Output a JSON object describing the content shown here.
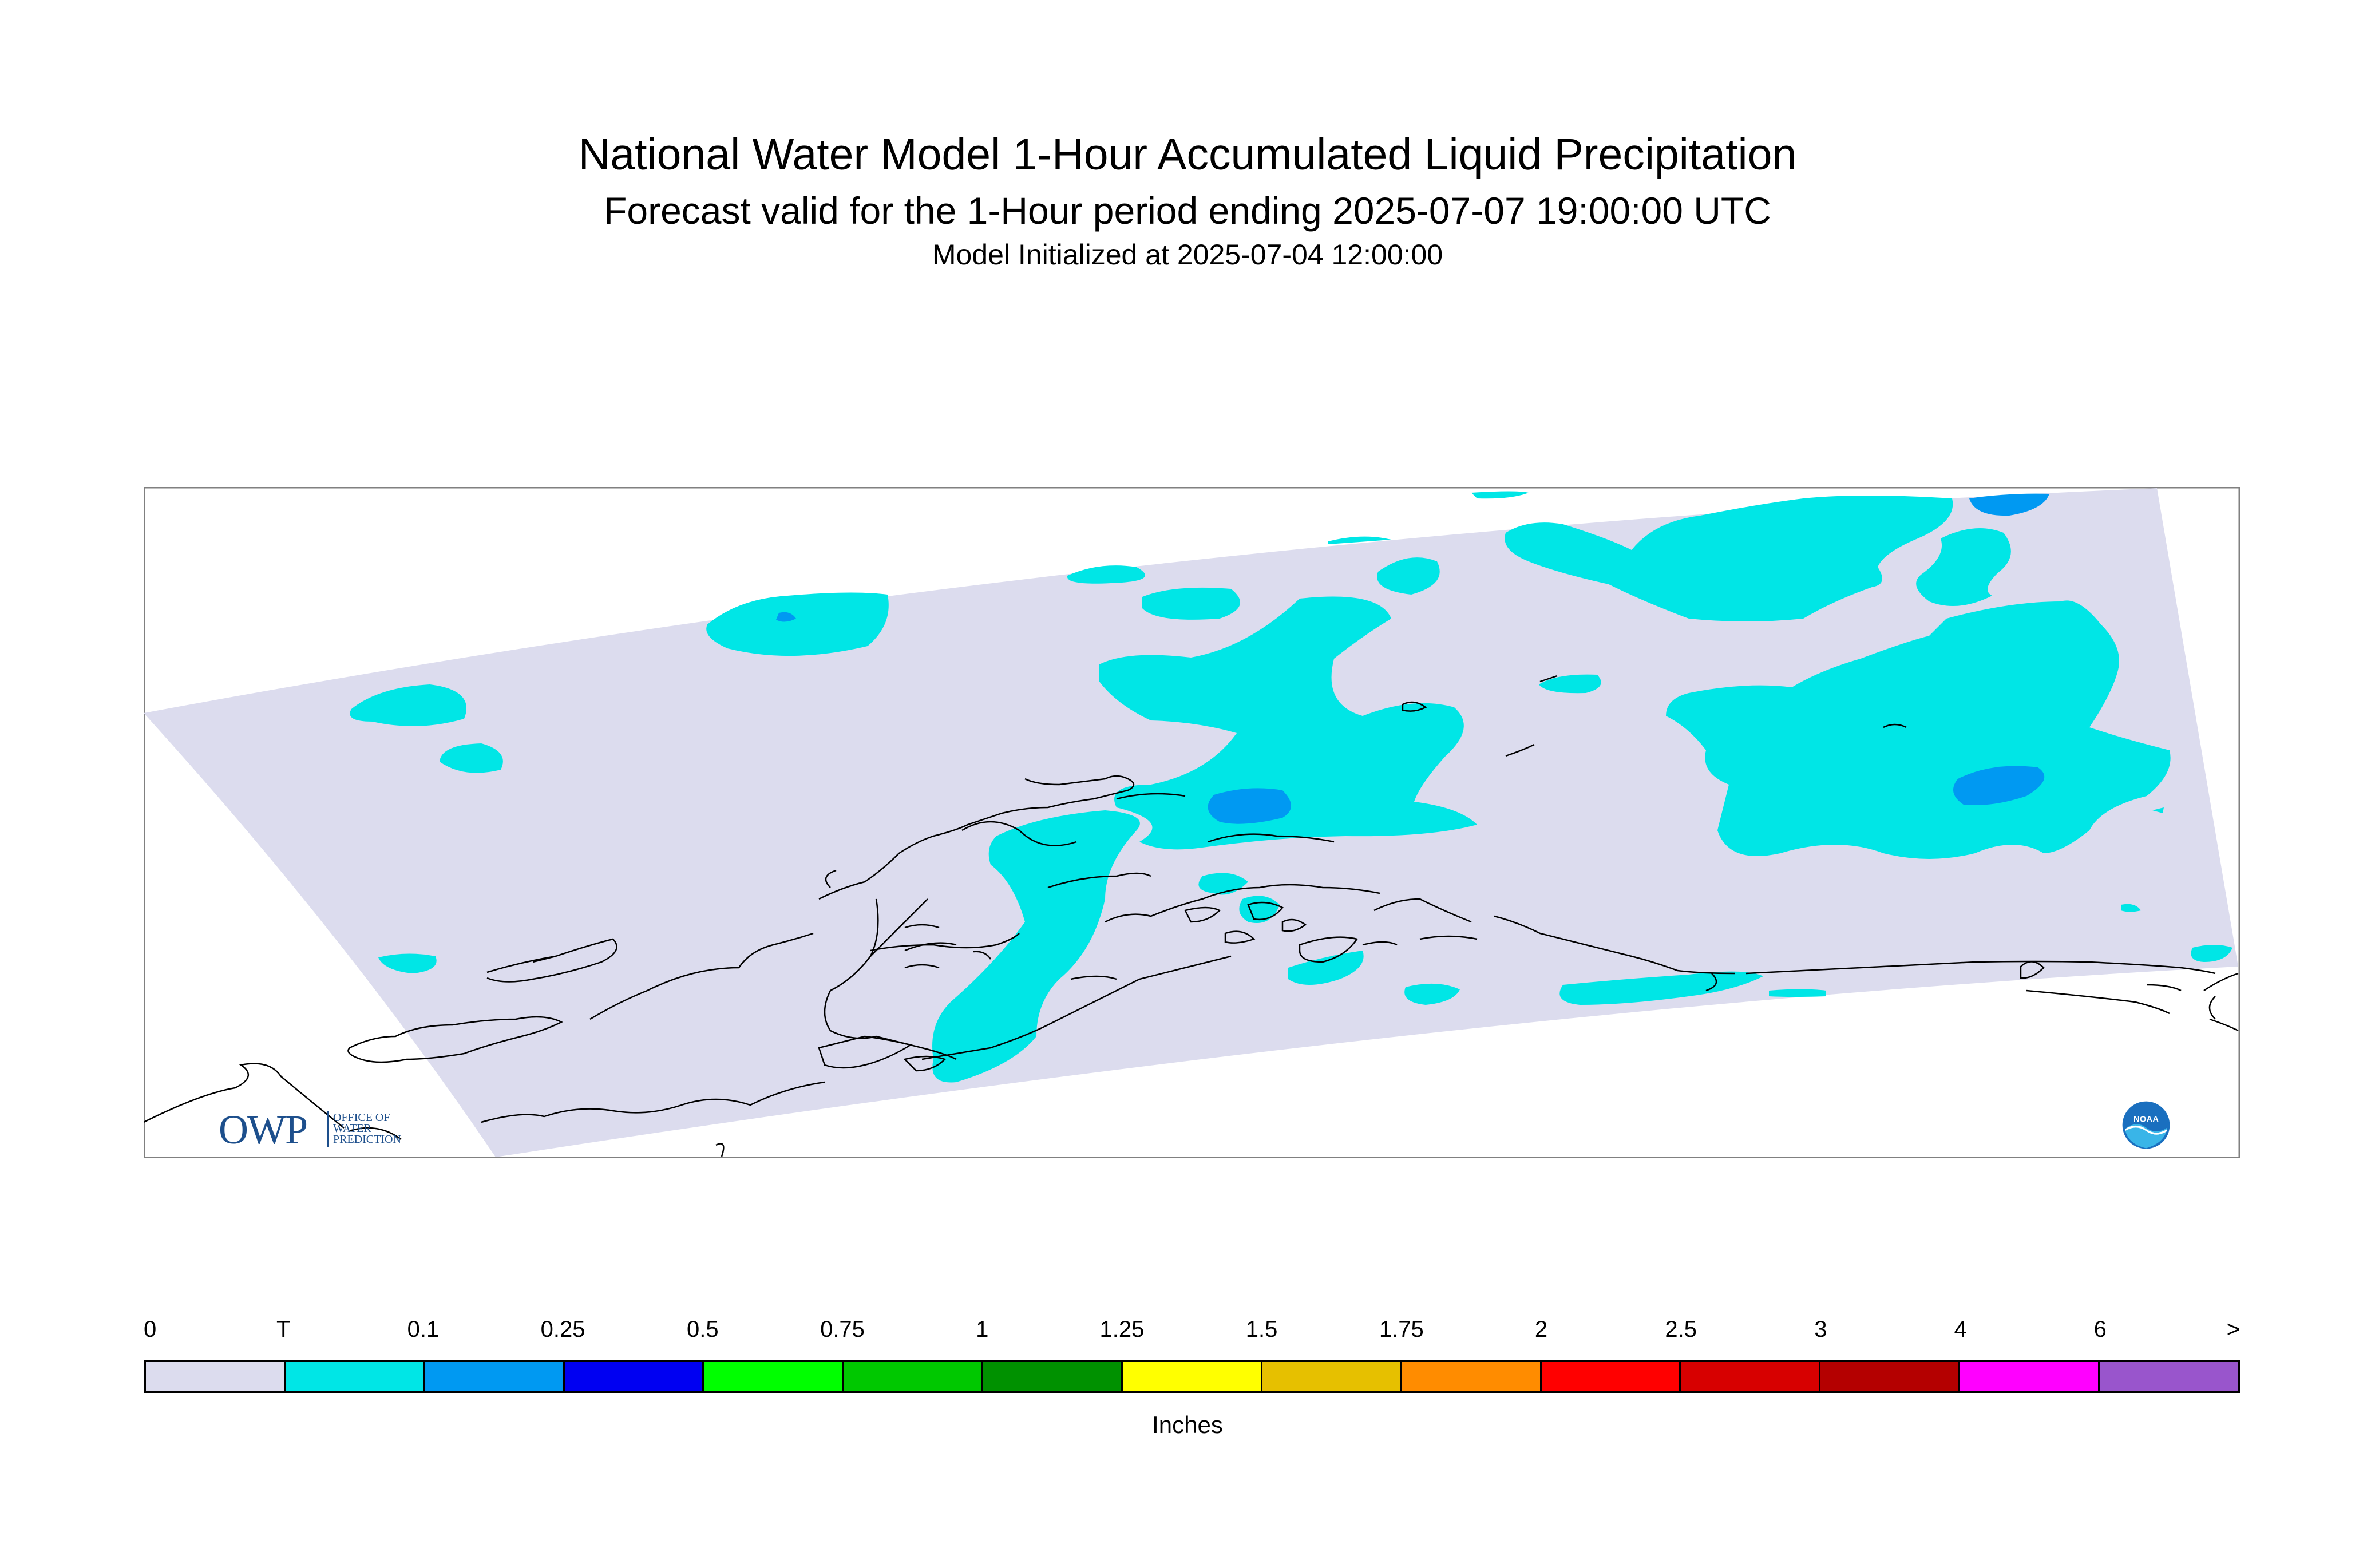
{
  "title": {
    "line1": "National Water Model 1-Hour Accumulated Liquid Precipitation",
    "line2": "Forecast valid for the 1-Hour period ending 2025-07-07 19:00:00 UTC",
    "line3": "Model Initialized at 2025-07-04 12:00:00"
  },
  "logos": {
    "owp_letters": "OWP",
    "owp_small": "OFFICE OF\nWATER\nPREDICTION",
    "noaa": "NOAA"
  },
  "colors": {
    "domain": "#dcdcee",
    "trace": "#00e6e6",
    "light_blue": "#0099f2",
    "coast": "#000000",
    "frame": "#808080"
  },
  "legend": {
    "tick_labels": [
      "0",
      "T",
      "0.1",
      "0.25",
      "0.5",
      "0.75",
      "1",
      "1.25",
      "1.5",
      "1.75",
      "2",
      "2.5",
      "3",
      "4",
      "6",
      ">"
    ],
    "colors": [
      "#dcdcee",
      "#00e6e6",
      "#0099f2",
      "#0000f2",
      "#00ff00",
      "#00c800",
      "#009100",
      "#ffff00",
      "#e6c000",
      "#ff8c00",
      "#ff0000",
      "#d70000",
      "#b40000",
      "#ff00ff",
      "#9955cc"
    ],
    "units": "Inches"
  }
}
